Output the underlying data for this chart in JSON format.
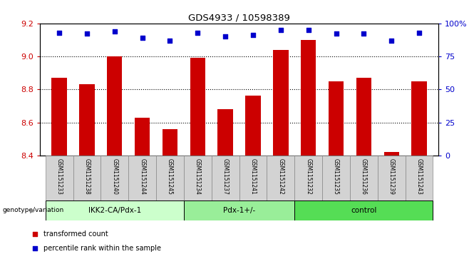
{
  "title": "GDS4933 / 10598389",
  "samples": [
    "GSM1151233",
    "GSM1151238",
    "GSM1151240",
    "GSM1151244",
    "GSM1151245",
    "GSM1151234",
    "GSM1151237",
    "GSM1151241",
    "GSM1151242",
    "GSM1151232",
    "GSM1151235",
    "GSM1151236",
    "GSM1151239",
    "GSM1151243"
  ],
  "transformed_counts": [
    8.87,
    8.83,
    9.0,
    8.63,
    8.56,
    8.99,
    8.68,
    8.76,
    9.04,
    9.1,
    8.85,
    8.87,
    8.42,
    8.85
  ],
  "percentile_ranks": [
    93,
    92,
    94,
    89,
    87,
    93,
    90,
    91,
    95,
    95,
    92,
    92,
    87,
    93
  ],
  "groups": [
    {
      "label": "IKK2-CA/Pdx-1",
      "start": 0,
      "end": 5,
      "color": "#ccffcc"
    },
    {
      "label": "Pdx-1+/-",
      "start": 5,
      "end": 9,
      "color": "#99ee99"
    },
    {
      "label": "control",
      "start": 9,
      "end": 14,
      "color": "#55dd55"
    }
  ],
  "group_label_prefix": "genotype/variation",
  "bar_color": "#cc0000",
  "dot_color": "#0000cc",
  "ylim_left": [
    8.4,
    9.2
  ],
  "ylim_right": [
    0,
    100
  ],
  "yticks_left": [
    8.4,
    8.6,
    8.8,
    9.0,
    9.2
  ],
  "yticks_right": [
    0,
    25,
    50,
    75,
    100
  ],
  "ytick_labels_right": [
    "0",
    "25",
    "50",
    "75",
    "100%"
  ],
  "legend_items": [
    {
      "color": "#cc0000",
      "label": "transformed count"
    },
    {
      "color": "#0000cc",
      "label": "percentile rank within the sample"
    }
  ],
  "tick_label_color_left": "#cc0000",
  "tick_label_color_right": "#0000cc",
  "bar_width": 0.55,
  "grid_yticks": [
    8.6,
    8.8,
    9.0
  ],
  "cell_bg": "#d3d3d3",
  "cell_edge": "#888888"
}
